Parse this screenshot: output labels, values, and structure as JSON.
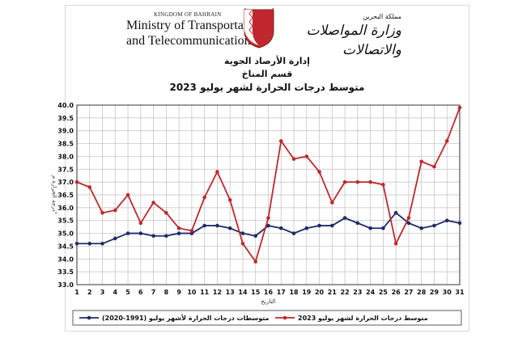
{
  "header": {
    "kingdom": "KINGDOM OF BAHRAIN",
    "ministry_line1": "Ministry of Transportation",
    "ministry_line2": "and Telecommunications",
    "arabic_small": "مملكة البحرين",
    "arabic_big": "وزارة المواصلات والاتصالات"
  },
  "titles": {
    "dept": "إدارة الأرصاد الجوية",
    "section": "قسم المناخ",
    "main": "متوسط درجات الحرارة لشهر يوليو 2023"
  },
  "chart_data": {
    "type": "line",
    "x": [
      1,
      2,
      3,
      4,
      5,
      6,
      7,
      8,
      9,
      10,
      11,
      12,
      13,
      14,
      15,
      16,
      17,
      18,
      19,
      20,
      21,
      22,
      23,
      24,
      25,
      26,
      27,
      28,
      29,
      30,
      31
    ],
    "xlabel": "التاريخ",
    "ylabel": "درجة الحرارة م°",
    "ylim": [
      33.0,
      40.0
    ],
    "yticks": [
      "33.0",
      "33.5",
      "34.0",
      "34.5",
      "35.0",
      "35.5",
      "36.0",
      "36.5",
      "37.0",
      "37.5",
      "38.0",
      "38.5",
      "39.0",
      "39.5",
      "40.0"
    ],
    "grid": true,
    "legend_position": "bottom",
    "series": [
      {
        "name": "متوسط درجات الحرارة لشهر يوليو 2023",
        "color": "#c0282d",
        "values": [
          37.0,
          36.8,
          35.8,
          35.9,
          36.5,
          35.4,
          36.2,
          35.8,
          35.2,
          35.1,
          36.4,
          37.4,
          36.3,
          34.6,
          33.9,
          35.6,
          38.6,
          37.9,
          38.0,
          37.4,
          36.2,
          37.0,
          37.0,
          37.0,
          36.9,
          34.6,
          35.6,
          37.8,
          37.6,
          38.6,
          39.9
        ]
      },
      {
        "name": "متوسطات درجات الحرارة لأشهر يوليو (1991-2020)",
        "color": "#1f2a6b",
        "values": [
          34.6,
          34.6,
          34.6,
          34.8,
          35.0,
          35.0,
          34.9,
          34.9,
          35.0,
          35.0,
          35.3,
          35.3,
          35.2,
          35.0,
          34.9,
          35.3,
          35.2,
          35.0,
          35.2,
          35.3,
          35.3,
          35.6,
          35.4,
          35.2,
          35.2,
          35.8,
          35.4,
          35.2,
          35.3,
          35.5,
          35.4
        ]
      }
    ]
  }
}
